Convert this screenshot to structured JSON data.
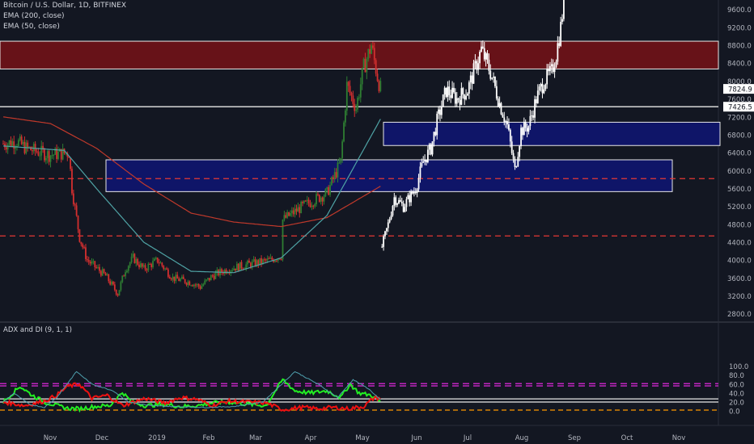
{
  "header": {
    "symbol": "Bitcoin / U.S. Dollar, 1D, BITFINEX",
    "ema200": "EMA (200, close)",
    "ema50": "EMA (50, close)"
  },
  "colors": {
    "background": "#131722",
    "up_candle": "#2e7d32",
    "down_candle": "#d32f2f",
    "projection_bar": "#ffffff",
    "ema50": "#4fa3a5",
    "ema200": "#c0392b",
    "zone_red": "#6b1218",
    "zone_blue": "#0f1570",
    "dashed_level": "#e53935",
    "plus_di": "#22ee22",
    "minus_di": "#ee1111",
    "adx": "#4e9fad",
    "adx_upper_band": "#c025c0",
    "adx_lower_band": "#ff9800"
  },
  "price_axis": {
    "ticks": [
      "9600.0",
      "9200.0",
      "8800.0",
      "8400.0",
      "8000.0",
      "7600.0",
      "7200.0",
      "6800.0",
      "6400.0",
      "6000.0",
      "5600.0",
      "5200.0",
      "4800.0",
      "4400.0",
      "4000.0",
      "3600.0",
      "3200.0",
      "2800.0"
    ],
    "last_price_label": "7824.9",
    "level_label": "7426.5"
  },
  "time_axis": {
    "labels": [
      "Nov",
      "Dec",
      "2019",
      "Feb",
      "Mar",
      "Apr",
      "May",
      "Jun",
      "Jul",
      "Aug",
      "Sep",
      "Oct",
      "Nov"
    ]
  },
  "indicator": {
    "title": "ADX and DI (9, 1, 1)",
    "ticks": [
      "100.0",
      "80.0",
      "60.0",
      "40.0",
      "20.0",
      "0.0"
    ]
  },
  "chart_data": [
    {
      "type": "candlestick",
      "ylim": [
        2600,
        9900
      ],
      "x_range": [
        "2018-10-01",
        "2019-11-30"
      ],
      "levels": {
        "horizontal_solid": [
          7426.5
        ],
        "horizontal_dashed": [
          5820,
          4540
        ],
        "resistance_zone": [
          8270,
          8890
        ],
        "support_zones": [
          [
            6560,
            7080
          ],
          [
            5530,
            6240
          ]
        ]
      },
      "actual_path": [
        [
          "2018-10-01",
          6600
        ],
        [
          "2018-10-10",
          6650
        ],
        [
          "2018-10-16",
          6500
        ],
        [
          "2018-10-31",
          6350
        ],
        [
          "2018-11-13",
          6400
        ],
        [
          "2018-11-15",
          5600
        ],
        [
          "2018-11-20",
          4500
        ],
        [
          "2018-11-25",
          4000
        ],
        [
          "2018-12-07",
          3650
        ],
        [
          "2018-12-15",
          3250
        ],
        [
          "2018-12-20",
          3800
        ],
        [
          "2018-12-25",
          4050
        ],
        [
          "2019-01-01",
          3800
        ],
        [
          "2019-01-10",
          4000
        ],
        [
          "2019-01-20",
          3600
        ],
        [
          "2019-02-01",
          3500
        ],
        [
          "2019-02-07",
          3400
        ],
        [
          "2019-02-15",
          3650
        ],
        [
          "2019-02-25",
          3800
        ],
        [
          "2019-03-10",
          3900
        ],
        [
          "2019-03-25",
          4000
        ],
        [
          "2019-04-01",
          4100
        ],
        [
          "2019-04-02",
          4900
        ],
        [
          "2019-04-15",
          5200
        ],
        [
          "2019-05-01",
          5500
        ],
        [
          "2019-05-10",
          6200
        ],
        [
          "2019-05-14",
          7900
        ],
        [
          "2019-05-20",
          7400
        ],
        [
          "2019-05-25",
          8300
        ],
        [
          "2019-05-30",
          8800
        ],
        [
          "2019-06-03",
          8100
        ],
        [
          "2019-06-05",
          7824.9
        ]
      ],
      "projection_path": [
        [
          "2019-06-06",
          4300
        ],
        [
          "2019-06-10",
          4800
        ],
        [
          "2019-06-14",
          5400
        ],
        [
          "2019-06-20",
          5200
        ],
        [
          "2019-06-28",
          5600
        ],
        [
          "2019-07-03",
          6200
        ],
        [
          "2019-07-08",
          6500
        ],
        [
          "2019-07-12",
          7100
        ],
        [
          "2019-07-18",
          7800
        ],
        [
          "2019-07-25",
          7600
        ],
        [
          "2019-08-01",
          7800
        ],
        [
          "2019-08-10",
          8700
        ],
        [
          "2019-08-16",
          8200
        ],
        [
          "2019-08-22",
          7500
        ],
        [
          "2019-08-27",
          7000
        ],
        [
          "2019-09-01",
          6000
        ],
        [
          "2019-09-05",
          6900
        ],
        [
          "2019-09-10",
          7000
        ],
        [
          "2019-09-15",
          7600
        ],
        [
          "2019-09-20",
          8000
        ],
        [
          "2019-09-25",
          8200
        ],
        [
          "2019-09-28",
          8600
        ],
        [
          "2019-10-01",
          9200
        ],
        [
          "2019-10-03",
          9800
        ]
      ],
      "ema200": [
        [
          "2018-10-01",
          7200
        ],
        [
          "2018-11-01",
          7050
        ],
        [
          "2018-12-01",
          6500
        ],
        [
          "2019-01-01",
          5700
        ],
        [
          "2019-02-01",
          5050
        ],
        [
          "2019-03-01",
          4850
        ],
        [
          "2019-04-01",
          4750
        ],
        [
          "2019-05-01",
          4950
        ],
        [
          "2019-06-05",
          5650
        ]
      ],
      "ema50": [
        [
          "2018-10-01",
          6550
        ],
        [
          "2018-11-10",
          6450
        ],
        [
          "2018-12-01",
          5600
        ],
        [
          "2019-01-01",
          4400
        ],
        [
          "2019-02-01",
          3750
        ],
        [
          "2019-03-01",
          3720
        ],
        [
          "2019-04-01",
          4050
        ],
        [
          "2019-05-01",
          5000
        ],
        [
          "2019-06-05",
          7150
        ]
      ]
    },
    {
      "type": "line",
      "title": "ADX and DI (9, 1, 1)",
      "ylim": [
        -5,
        100
      ],
      "reference_lines": {
        "upper_dashed": [
          56,
          61
        ],
        "solid": [
          20,
          27
        ],
        "lower_dashed": [
          2
        ]
      },
      "series": [
        {
          "key": "plus_di",
          "values": [
            [
              "2018-10-01",
              20
            ],
            [
              "2018-10-12",
              55
            ],
            [
              "2018-10-20",
              35
            ],
            [
              "2018-10-28",
              20
            ],
            [
              "2018-11-05",
              12
            ],
            [
              "2018-11-12",
              6
            ],
            [
              "2018-11-20",
              5
            ],
            [
              "2018-11-30",
              10
            ],
            [
              "2018-12-10",
              12
            ],
            [
              "2018-12-18",
              42
            ],
            [
              "2018-12-24",
              20
            ],
            [
              "2019-01-02",
              12
            ],
            [
              "2019-01-15",
              15
            ],
            [
              "2019-01-25",
              10
            ],
            [
              "2019-02-05",
              12
            ],
            [
              "2019-02-15",
              18
            ],
            [
              "2019-02-25",
              20
            ],
            [
              "2019-03-10",
              15
            ],
            [
              "2019-03-22",
              12
            ],
            [
              "2019-04-02",
              70
            ],
            [
              "2019-04-10",
              45
            ],
            [
              "2019-04-20",
              40
            ],
            [
              "2019-05-01",
              45
            ],
            [
              "2019-05-10",
              30
            ],
            [
              "2019-05-16",
              60
            ],
            [
              "2019-05-22",
              40
            ],
            [
              "2019-05-30",
              35
            ],
            [
              "2019-06-05",
              20
            ]
          ]
        },
        {
          "key": "minus_di",
          "values": [
            [
              "2018-10-01",
              20
            ],
            [
              "2018-10-15",
              12
            ],
            [
              "2018-10-28",
              22
            ],
            [
              "2018-11-05",
              35
            ],
            [
              "2018-11-12",
              55
            ],
            [
              "2018-11-20",
              60
            ],
            [
              "2018-11-28",
              28
            ],
            [
              "2018-12-08",
              35
            ],
            [
              "2018-12-18",
              12
            ],
            [
              "2019-01-02",
              28
            ],
            [
              "2019-01-15",
              18
            ],
            [
              "2019-01-25",
              30
            ],
            [
              "2019-02-05",
              26
            ],
            [
              "2019-02-15",
              12
            ],
            [
              "2019-02-25",
              22
            ],
            [
              "2019-03-10",
              20
            ],
            [
              "2019-03-22",
              18
            ],
            [
              "2019-04-02",
              3
            ],
            [
              "2019-04-15",
              8
            ],
            [
              "2019-04-25",
              5
            ],
            [
              "2019-05-05",
              8
            ],
            [
              "2019-05-15",
              5
            ],
            [
              "2019-05-25",
              10
            ],
            [
              "2019-06-01",
              30
            ],
            [
              "2019-06-05",
              28
            ]
          ]
        },
        {
          "key": "adx",
          "values": [
            [
              "2018-10-01",
              20
            ],
            [
              "2018-10-08",
              40
            ],
            [
              "2018-10-18",
              15
            ],
            [
              "2018-10-28",
              8
            ],
            [
              "2018-11-05",
              30
            ],
            [
              "2018-11-18",
              88
            ],
            [
              "2018-11-28",
              60
            ],
            [
              "2018-12-12",
              45
            ],
            [
              "2018-12-22",
              20
            ],
            [
              "2019-01-05",
              12
            ],
            [
              "2019-01-20",
              10
            ],
            [
              "2019-02-10",
              8
            ],
            [
              "2019-03-01",
              10
            ],
            [
              "2019-03-20",
              20
            ],
            [
              "2019-04-10",
              88
            ],
            [
              "2019-04-25",
              60
            ],
            [
              "2019-05-08",
              30
            ],
            [
              "2019-05-18",
              70
            ],
            [
              "2019-05-28",
              50
            ],
            [
              "2019-06-05",
              25
            ]
          ]
        }
      ]
    }
  ]
}
